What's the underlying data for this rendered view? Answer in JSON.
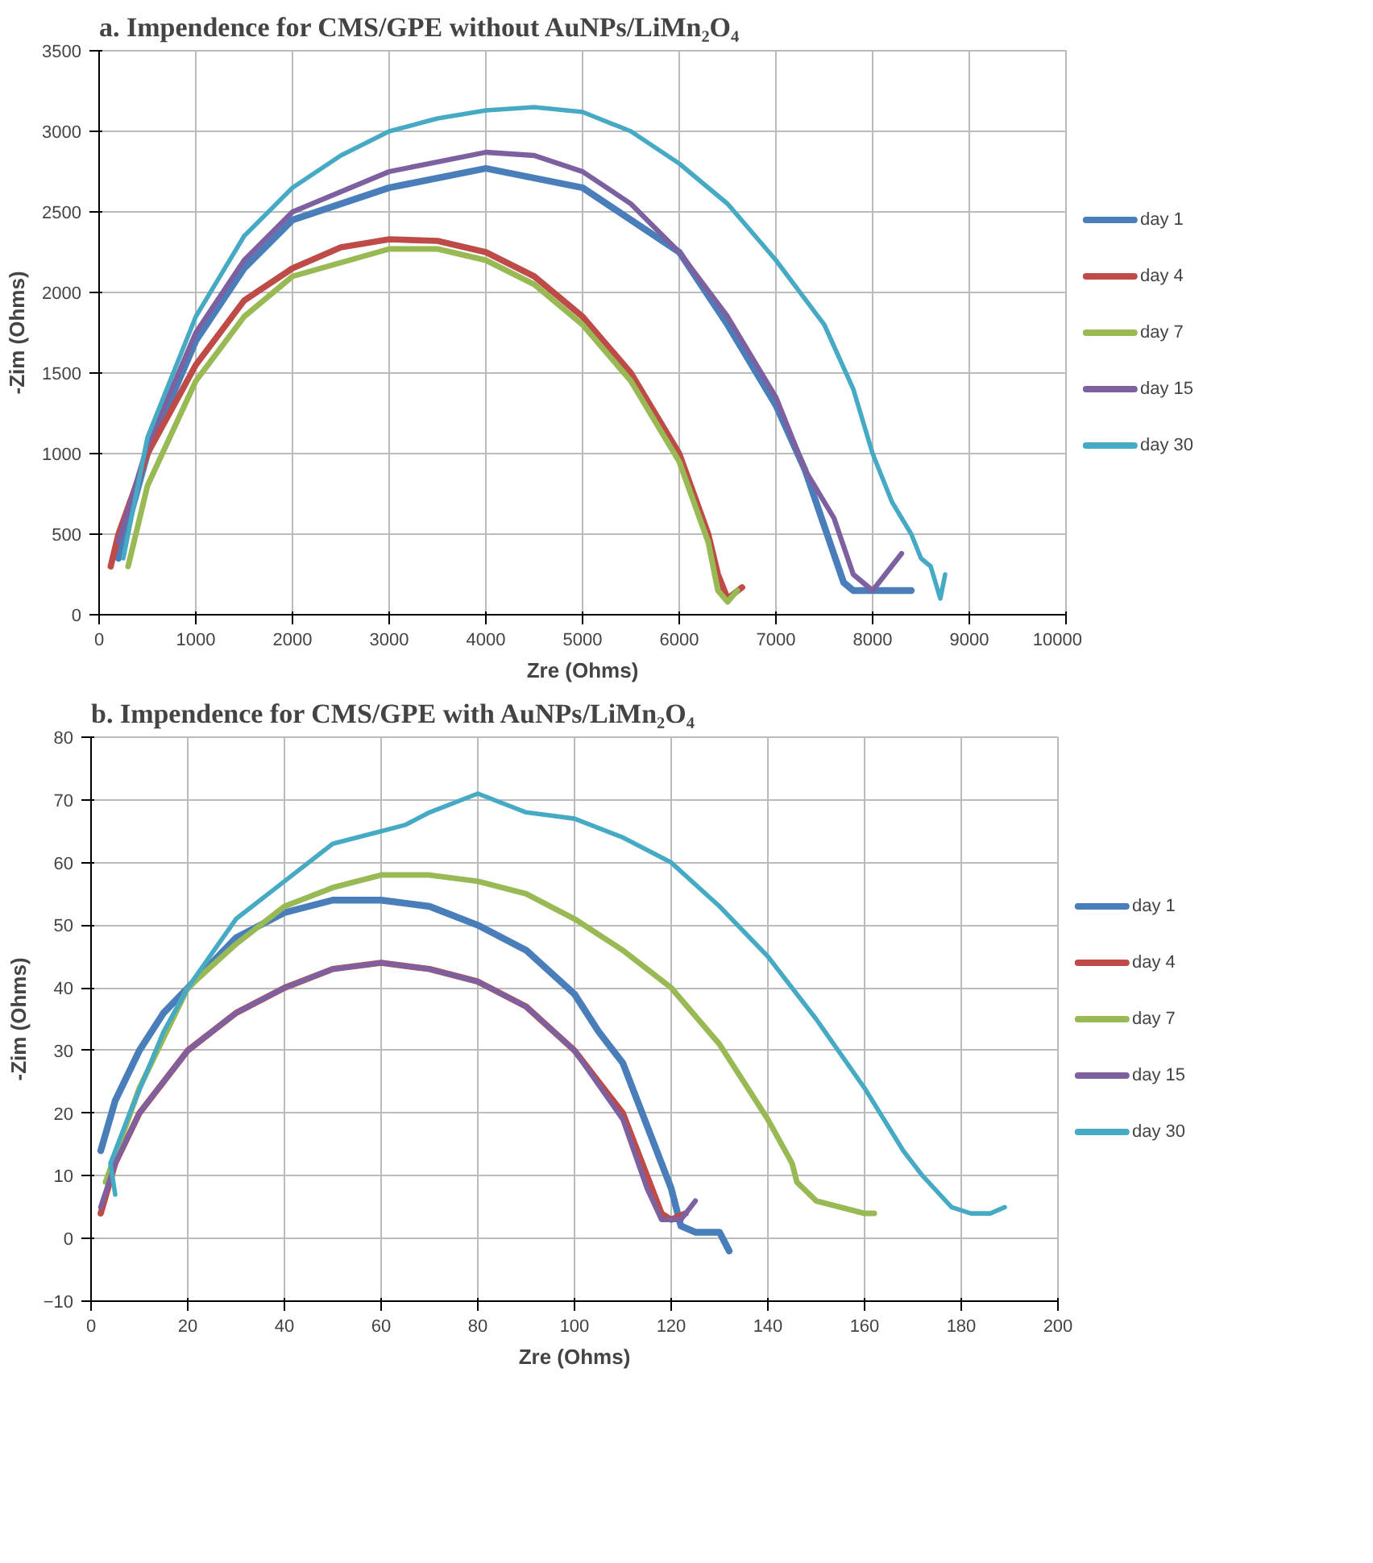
{
  "chart_data": [
    {
      "type": "line",
      "title": "a. Impendence  for CMS/GPE  without AuNPs/LiMn₂O₄",
      "xlabel": "Zre (Ohms)",
      "ylabel": "-Zim (Ohms)",
      "xlim": [
        0,
        10000
      ],
      "ylim": [
        0,
        3500
      ],
      "xticks": [
        0,
        1000,
        2000,
        3000,
        4000,
        5000,
        6000,
        7000,
        8000,
        9000,
        10000
      ],
      "yticks": [
        0,
        500,
        1000,
        1500,
        2000,
        2500,
        3000,
        3500
      ],
      "grid": true,
      "legend": "right",
      "marker": "none",
      "line_style": "solid",
      "series": [
        {
          "name": "day 1",
          "color": "#4a7ebb",
          "x": [
            200,
            500,
            1000,
            1500,
            2000,
            3000,
            4000,
            5000,
            6000,
            6500,
            7000,
            7300,
            7500,
            7700,
            7800,
            8000,
            8400
          ],
          "values": [
            350,
            1000,
            1700,
            2150,
            2450,
            2650,
            2770,
            2650,
            2250,
            1800,
            1300,
            900,
            550,
            200,
            150,
            150,
            150
          ]
        },
        {
          "name": "day 4",
          "color": "#be4b48",
          "x": [
            120,
            200,
            500,
            1000,
            1500,
            2000,
            2500,
            3000,
            3500,
            4000,
            4500,
            5000,
            5500,
            6000,
            6300,
            6400,
            6500,
            6650
          ],
          "values": [
            300,
            500,
            1000,
            1550,
            1950,
            2150,
            2280,
            2330,
            2320,
            2250,
            2100,
            1850,
            1500,
            1000,
            500,
            250,
            100,
            170
          ]
        },
        {
          "name": "day 7",
          "color": "#98b954",
          "x": [
            300,
            500,
            1000,
            1500,
            2000,
            3000,
            3500,
            4000,
            4500,
            5000,
            5500,
            6000,
            6300,
            6400,
            6500,
            6600
          ],
          "values": [
            300,
            800,
            1450,
            1850,
            2100,
            2270,
            2270,
            2200,
            2050,
            1800,
            1450,
            950,
            450,
            150,
            80,
            150
          ]
        },
        {
          "name": "day 15",
          "color": "#7d60a0",
          "x": [
            200,
            500,
            1000,
            1500,
            2000,
            3000,
            4000,
            4500,
            5000,
            5500,
            6000,
            6500,
            7000,
            7300,
            7600,
            7800,
            8000,
            8300
          ],
          "values": [
            450,
            1050,
            1750,
            2200,
            2500,
            2750,
            2870,
            2850,
            2750,
            2550,
            2250,
            1850,
            1350,
            900,
            600,
            250,
            150,
            380
          ]
        },
        {
          "name": "day 30",
          "color": "#46aac5",
          "x": [
            250,
            500,
            1000,
            1500,
            2000,
            2500,
            3000,
            3500,
            4000,
            4500,
            5000,
            5500,
            6000,
            6500,
            7000,
            7500,
            7800,
            8000,
            8200,
            8400,
            8500,
            8600,
            8700,
            8750
          ],
          "values": [
            350,
            1100,
            1850,
            2350,
            2650,
            2850,
            3000,
            3080,
            3130,
            3150,
            3120,
            3000,
            2800,
            2550,
            2200,
            1800,
            1400,
            1000,
            700,
            500,
            350,
            300,
            100,
            250
          ]
        }
      ]
    },
    {
      "type": "line",
      "title": "b. Impendence  for CMS/GPE  with AuNPs/LiMn₂O₄",
      "xlabel": "Zre (Ohms)",
      "ylabel": "-Zim (Ohms)",
      "xlim": [
        0,
        200
      ],
      "ylim": [
        -10,
        80
      ],
      "xticks": [
        0,
        20,
        40,
        60,
        80,
        100,
        120,
        140,
        160,
        180,
        200
      ],
      "yticks": [
        -10,
        0,
        10,
        20,
        30,
        40,
        50,
        60,
        70,
        80
      ],
      "grid": true,
      "legend": "right",
      "marker": "none",
      "line_style": "solid",
      "series": [
        {
          "name": "day 1",
          "color": "#4a7ebb",
          "x": [
            2,
            5,
            10,
            15,
            20,
            30,
            40,
            50,
            60,
            70,
            80,
            90,
            100,
            105,
            110,
            115,
            120,
            122,
            125,
            130,
            132
          ],
          "values": [
            14,
            22,
            30,
            36,
            40,
            48,
            52,
            54,
            54,
            53,
            50,
            46,
            39,
            33,
            28,
            18,
            8,
            2,
            1,
            1,
            -2
          ]
        },
        {
          "name": "day 4",
          "color": "#be4b48",
          "x": [
            2,
            5,
            10,
            20,
            30,
            40,
            50,
            60,
            70,
            80,
            90,
            100,
            110,
            115,
            118,
            120,
            123
          ],
          "values": [
            4,
            12,
            20,
            30,
            36,
            40,
            43,
            44,
            43,
            41,
            37,
            30,
            20,
            10,
            4,
            3,
            4
          ]
        },
        {
          "name": "day 7",
          "color": "#98b954",
          "x": [
            3,
            10,
            15,
            20,
            30,
            40,
            50,
            60,
            70,
            80,
            90,
            100,
            110,
            120,
            130,
            140,
            145,
            146,
            150,
            160,
            162
          ],
          "values": [
            9,
            24,
            32,
            40,
            47,
            53,
            56,
            58,
            58,
            57,
            55,
            51,
            46,
            40,
            31,
            19,
            12,
            9,
            6,
            4,
            4
          ]
        },
        {
          "name": "day 15",
          "color": "#7d60a0",
          "x": [
            2,
            5,
            10,
            20,
            30,
            40,
            50,
            60,
            70,
            80,
            90,
            100,
            110,
            115,
            118,
            122,
            125
          ],
          "values": [
            5,
            12,
            20,
            30,
            36,
            40,
            43,
            44,
            43,
            41,
            37,
            30,
            19,
            8,
            3,
            3,
            6
          ]
        },
        {
          "name": "day 30",
          "color": "#46aac5",
          "x": [
            5,
            4,
            8,
            15,
            20,
            30,
            40,
            50,
            60,
            65,
            70,
            80,
            90,
            100,
            110,
            120,
            130,
            140,
            150,
            160,
            168,
            172,
            178,
            182,
            186,
            189
          ],
          "values": [
            7,
            12,
            20,
            33,
            40,
            51,
            57,
            63,
            65,
            66,
            68,
            71,
            68,
            67,
            64,
            60,
            53,
            45,
            35,
            24,
            14,
            10,
            5,
            4,
            4,
            5
          ]
        }
      ]
    }
  ]
}
